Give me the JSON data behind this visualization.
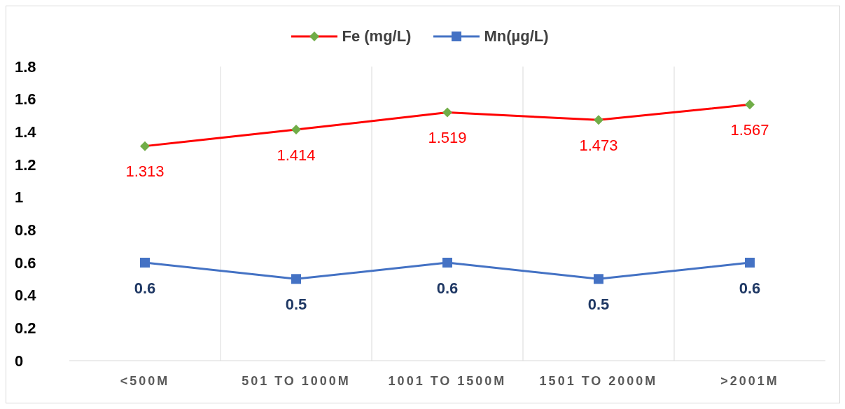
{
  "chart_data": {
    "type": "line",
    "categories": [
      "<500M",
      "501 TO 1000M",
      "1001 TO 1500M",
      "1501 TO 2000M",
      ">2001M"
    ],
    "series": [
      {
        "name": "Fe (mg/L)",
        "color": "#ff0000",
        "colors": [
          "#70ad47",
          "#70ad47",
          "#70ad47",
          "#70ad47",
          "#70ad47"
        ],
        "marker": "diamond",
        "values": [
          1.313,
          1.414,
          1.519,
          1.473,
          1.567
        ]
      },
      {
        "name": "Mn(µg/L)",
        "color": "#4472c4",
        "marker": "square",
        "values": [
          0.6,
          0.5,
          0.6,
          0.5,
          0.6
        ]
      }
    ],
    "ylim": [
      0,
      1.8
    ],
    "yticks": [
      0,
      0.2,
      0.4,
      0.6,
      0.8,
      1,
      1.2,
      1.4,
      1.6,
      1.8
    ],
    "grid": "x",
    "legend": "top",
    "data_labels": true
  }
}
